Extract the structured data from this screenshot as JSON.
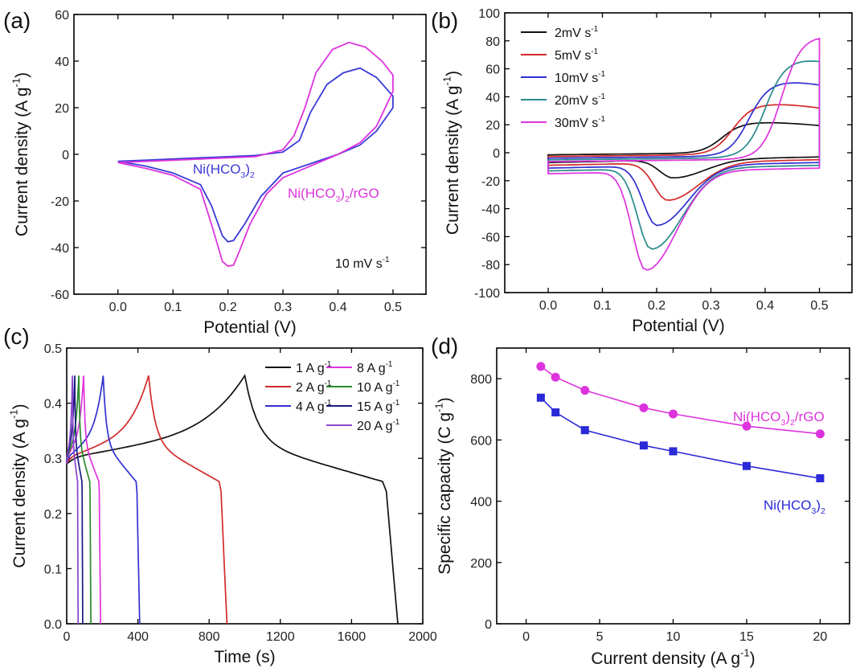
{
  "chart_data": [
    {
      "panel": "(a)",
      "type": "line",
      "xlabel": "Potential (V)",
      "ylabel": "Current density (A g-1)",
      "ylabel_main": "Current density (A g",
      "ylabel_sup": "-1",
      "ylabel_end": ")",
      "xlim": [
        -0.08,
        0.56
      ],
      "ylim": [
        -60,
        60
      ],
      "xticks": [
        0.0,
        0.1,
        0.2,
        0.3,
        0.4,
        0.5
      ],
      "xtick_labels": [
        "0.0",
        "0.1",
        "0.2",
        "0.3",
        "0.4",
        "0.5"
      ],
      "yticks": [
        -60,
        -40,
        -20,
        0,
        20,
        40,
        60
      ],
      "ytick_labels": [
        "-60",
        "-40",
        "-20",
        "0",
        "20",
        "40",
        "60"
      ],
      "annotation": {
        "main": "10 mV s",
        "sup": "-1"
      },
      "series": [
        {
          "name": "Ni(HCO3)2",
          "label_main": "Ni(HCO",
          "label_sub1": "3",
          "label_mid": ")",
          "label_sub2": "2",
          "label_end": "",
          "color": "#3a3ad8",
          "x": [
            0.0,
            0.05,
            0.1,
            0.15,
            0.2,
            0.25,
            0.3,
            0.33,
            0.35,
            0.38,
            0.41,
            0.44,
            0.47,
            0.5,
            0.5,
            0.47,
            0.44,
            0.4,
            0.35,
            0.3,
            0.26,
            0.23,
            0.21,
            0.2,
            0.19,
            0.17,
            0.15,
            0.1,
            0.05,
            0.0
          ],
          "y": [
            -3,
            -2.5,
            -2,
            -1.5,
            -1,
            -0.5,
            1,
            6,
            18,
            30,
            35,
            37,
            33,
            25,
            20,
            10,
            4,
            0,
            -4,
            -8,
            -18,
            -30,
            -37,
            -37.5,
            -35,
            -22,
            -13,
            -8,
            -5,
            -3
          ]
        },
        {
          "name": "Ni(HCO3)2/rGO",
          "label_main": "Ni(HCO",
          "label_sub1": "3",
          "label_mid": ")",
          "label_sub2": "2",
          "label_end": "/rGO",
          "color": "#dd33dd",
          "x": [
            0.0,
            0.05,
            0.1,
            0.15,
            0.2,
            0.25,
            0.3,
            0.32,
            0.34,
            0.36,
            0.39,
            0.42,
            0.45,
            0.48,
            0.5,
            0.5,
            0.47,
            0.44,
            0.4,
            0.35,
            0.3,
            0.27,
            0.24,
            0.22,
            0.21,
            0.2,
            0.19,
            0.17,
            0.15,
            0.1,
            0.05,
            0.0
          ],
          "y": [
            -3.5,
            -3,
            -2.5,
            -2,
            -1.5,
            -1,
            2,
            8,
            20,
            35,
            45,
            48,
            46,
            40,
            34,
            27,
            12,
            5,
            0,
            -5,
            -10,
            -17,
            -30,
            -42,
            -47.5,
            -48,
            -46,
            -30,
            -15,
            -9,
            -6,
            -3.5
          ]
        }
      ]
    },
    {
      "panel": "(b)",
      "type": "line",
      "xlabel": "Potential (V)",
      "ylabel": "Current density (A g-1)",
      "ylabel_main": "Current density (A g",
      "ylabel_sup": "-1",
      "ylabel_end": ")",
      "xlim": [
        -0.08,
        0.56
      ],
      "ylim": [
        -100,
        100
      ],
      "xticks": [
        0.0,
        0.1,
        0.2,
        0.3,
        0.4,
        0.5
      ],
      "xtick_labels": [
        "0.0",
        "0.1",
        "0.2",
        "0.3",
        "0.4",
        "0.5"
      ],
      "yticks": [
        -100,
        -80,
        -60,
        -40,
        -20,
        0,
        20,
        40,
        60,
        80,
        100
      ],
      "ytick_labels": [
        "-100",
        "-80",
        "-60",
        "-40",
        "-20",
        "0",
        "20",
        "40",
        "60",
        "80",
        "100"
      ],
      "legend_position": "top-left",
      "series": [
        {
          "name": "2mV s-1",
          "label_main": "2mV s",
          "label_sup": "-1",
          "color": "#111111",
          "ox": 0.37,
          "oy": 21.7,
          "iy": -18,
          "ix": 0.23
        },
        {
          "name": "5mV s-1",
          "label_main": "5mV s",
          "label_sup": "-1",
          "color": "#d42a2a",
          "ox": 0.39,
          "oy": 36,
          "iy": -34,
          "ix": 0.22
        },
        {
          "name": "10mV s-1",
          "label_main": "10mV s",
          "label_sup": "-1",
          "color": "#3030d0",
          "ox": 0.42,
          "oy": 53,
          "iy": -52,
          "ix": 0.2
        },
        {
          "name": "20mV s-1",
          "label_main": "20mV s",
          "label_sup": "-1",
          "color": "#2a8a8a",
          "ox": 0.45,
          "oy": 70,
          "iy": -69,
          "ix": 0.19
        },
        {
          "name": "30mV s-1",
          "label_main": "30mV s",
          "label_sup": "-1",
          "color": "#dd33dd",
          "ox": 0.48,
          "oy": 88,
          "iy": -84,
          "ix": 0.18
        }
      ]
    },
    {
      "panel": "(c)",
      "type": "line",
      "xlabel": "Time (s)",
      "ylabel": "Current density (A g-1)",
      "ylabel_main": "Current density (A g",
      "ylabel_sup": "-1",
      "ylabel_end": ")",
      "xlim": [
        0,
        2000
      ],
      "ylim": [
        0,
        0.5
      ],
      "xticks": [
        0,
        400,
        800,
        1200,
        1600,
        2000
      ],
      "xtick_labels": [
        "0",
        "400",
        "800",
        "1200",
        "1600",
        "2000"
      ],
      "yticks": [
        0.0,
        0.1,
        0.2,
        0.3,
        0.4,
        0.5
      ],
      "ytick_labels": [
        "0.0",
        "0.1",
        "0.2",
        "0.3",
        "0.4",
        "0.5"
      ],
      "legend_position": "top-right",
      "series": [
        {
          "name": "1 A g-1",
          "label_main": "1 A g",
          "label_sup": "-1",
          "color": "#111111",
          "peak": 1000,
          "end": 1860
        },
        {
          "name": "2 A g-1",
          "label_main": "2 A g",
          "label_sup": "-1",
          "color": "#d42a2a",
          "peak": 460,
          "end": 900
        },
        {
          "name": "4 A g-1",
          "label_main": "4 A g",
          "label_sup": "-1",
          "color": "#3030d0",
          "peak": 205,
          "end": 410
        },
        {
          "name": "8 A g-1",
          "label_main": "8 A g",
          "label_sup": "-1",
          "color": "#dd33dd",
          "peak": 95,
          "end": 190
        },
        {
          "name": "10 A g-1",
          "label_main": "10 A g",
          "label_sup": "-1",
          "color": "#2a8a2a",
          "peak": 68,
          "end": 136
        },
        {
          "name": "15 A g-1",
          "label_main": "15 A g",
          "label_sup": "-1",
          "color": "#1a1a80",
          "peak": 45,
          "end": 90
        },
        {
          "name": "20 A g-1",
          "label_main": "20 A g",
          "label_sup": "-1",
          "color": "#8844cc",
          "peak": 32,
          "end": 64
        }
      ]
    },
    {
      "panel": "(d)",
      "type": "line",
      "xlabel": "Current density (A g-1)",
      "xlabel_main": "Current density (A g",
      "xlabel_sup": "-1",
      "xlabel_end": ")",
      "ylabel": "Specific capacity (C g-1)",
      "ylabel_main": "Specific capacity (C g",
      "ylabel_sup": "-1",
      "ylabel_end": ")",
      "xlim": [
        -2,
        22
      ],
      "ylim": [
        0,
        900
      ],
      "xticks": [
        0,
        5,
        10,
        15,
        20
      ],
      "xtick_labels": [
        "0",
        "5",
        "10",
        "15",
        "20"
      ],
      "yticks": [
        0,
        200,
        400,
        600,
        800
      ],
      "ytick_labels": [
        "0",
        "200",
        "400",
        "600",
        "800"
      ],
      "categories": [
        1,
        2,
        4,
        8,
        10,
        15,
        20
      ],
      "series": [
        {
          "name": "Ni(HCO3)2/rGO",
          "label_main": "Ni(HCO",
          "label_sub1": "3",
          "label_mid": ")",
          "label_sub2": "2",
          "label_end": "/rGO",
          "color": "#dd33dd",
          "marker": "circle",
          "values": [
            840,
            805,
            762,
            705,
            685,
            645,
            620
          ]
        },
        {
          "name": "Ni(HCO3)2",
          "label_main": "Ni(HCO",
          "label_sub1": "3",
          "label_mid": ")",
          "label_sub2": "2",
          "label_end": "",
          "color": "#2a2ad8",
          "marker": "square",
          "values": [
            738,
            690,
            632,
            582,
            563,
            515,
            475
          ]
        }
      ]
    }
  ]
}
